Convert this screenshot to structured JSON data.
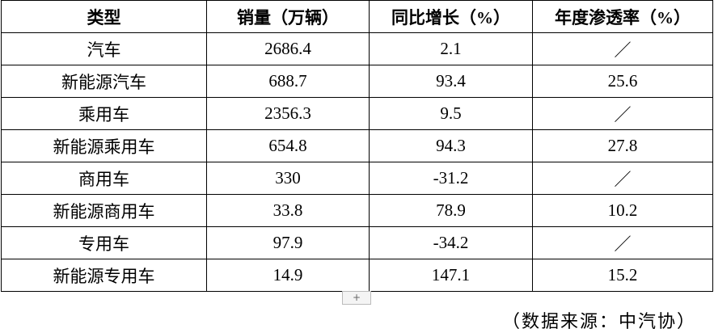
{
  "table": {
    "header": [
      "类型",
      "销量（万辆）",
      "同比增长（%）",
      "年度渗透率（%）"
    ],
    "rows": [
      [
        "汽车",
        "2686.4",
        "2.1",
        "／"
      ],
      [
        "新能源汽车",
        "688.7",
        "93.4",
        "25.6"
      ],
      [
        "乘用车",
        "2356.3",
        "9.5",
        "／"
      ],
      [
        "新能源乘用车",
        "654.8",
        "94.3",
        "27.8"
      ],
      [
        "商用车",
        "330",
        "-31.2",
        "／"
      ],
      [
        "新能源商用车",
        "33.8",
        "78.9",
        "10.2"
      ],
      [
        "专用车",
        "97.9",
        "-34.2",
        "／"
      ],
      [
        "新能源专用车",
        "14.9",
        "147.1",
        "15.2"
      ]
    ]
  },
  "source": "（数据来源：中汽协）"
}
